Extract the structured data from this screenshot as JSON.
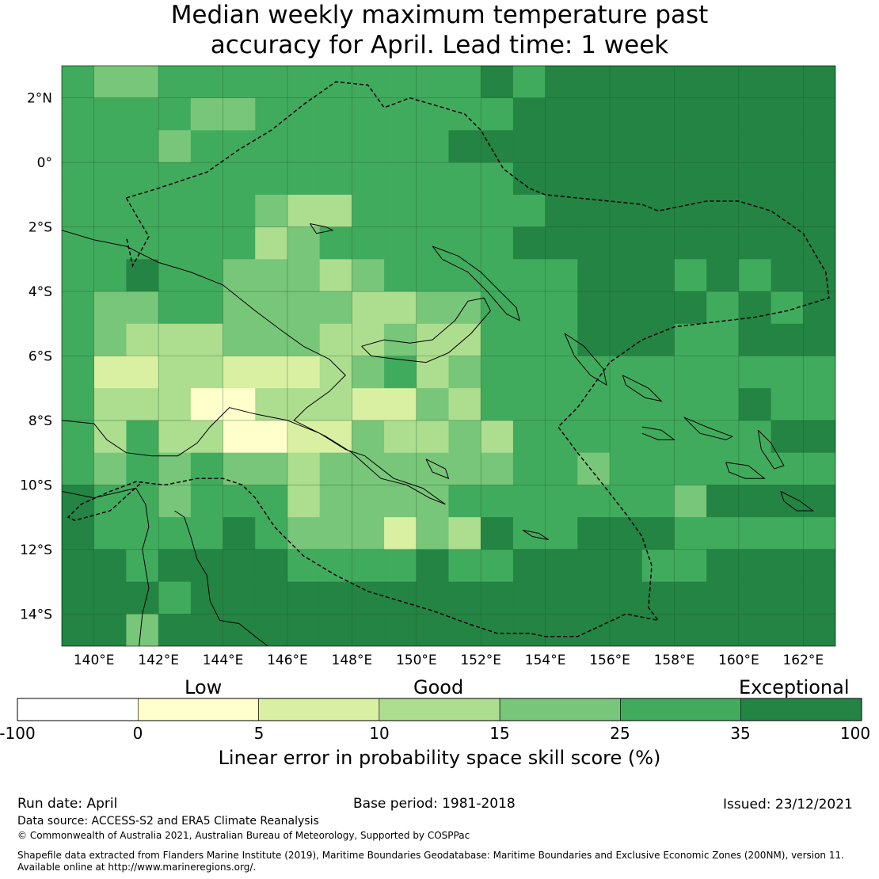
{
  "title_line1": "Median weekly maximum temperature past",
  "title_line2": "accuracy for April. Lead time: 1 week",
  "map": {
    "lat_labels": [
      "2°N",
      "0°",
      "2°S",
      "4°S",
      "6°S",
      "8°S",
      "10°S",
      "12°S",
      "14°S"
    ],
    "lat_values": [
      2,
      0,
      -2,
      -4,
      -6,
      -8,
      -10,
      -12,
      -14
    ],
    "lon_labels": [
      "140°E",
      "142°E",
      "144°E",
      "146°E",
      "148°E",
      "150°E",
      "152°E",
      "154°E",
      "156°E",
      "158°E",
      "160°E",
      "162°E"
    ],
    "lon_values": [
      140,
      142,
      144,
      146,
      148,
      150,
      152,
      154,
      156,
      158,
      160,
      162
    ],
    "lon_range": [
      139,
      163
    ],
    "lat_range": [
      -15,
      3
    ]
  },
  "colorbar": {
    "category_labels": [
      "Low",
      "Good",
      "Exceptional"
    ],
    "tick_labels": [
      "-100",
      "0",
      "5",
      "10",
      "15",
      "25",
      "35",
      "100"
    ],
    "bins": [
      {
        "from": -100,
        "to": 0,
        "color": "#ffffff"
      },
      {
        "from": 0,
        "to": 5,
        "color": "#ffffcc"
      },
      {
        "from": 5,
        "to": 10,
        "color": "#d9f0a3"
      },
      {
        "from": 10,
        "to": 15,
        "color": "#addd8e"
      },
      {
        "from": 15,
        "to": 25,
        "color": "#78c679"
      },
      {
        "from": 25,
        "to": 35,
        "color": "#41ab5d"
      },
      {
        "from": 35,
        "to": 100,
        "color": "#238443"
      }
    ],
    "title": "Linear error in probability space skill score (%)"
  },
  "footer": {
    "run_date": "Run date: April",
    "base_period": "Base period: 1981-2018",
    "issued": "Issued: 23/12/2021",
    "data_source": "Data source: ACCESS-S2 and ERA5 Climate Reanalysis",
    "copyright": "© Commonwealth of Australia 2021, Australian Bureau of Meteorology, Supported by COSPPac",
    "shapefile_line1": "Shapefile data extracted from Flanders Marine Institute (2019), Maritime Boundaries Geodatabase: Maritime Boundaries and Exclusive Economic Zones (200NM), version 11.",
    "shapefile_line2": "Available online at http://www.marineregions.org/."
  }
}
